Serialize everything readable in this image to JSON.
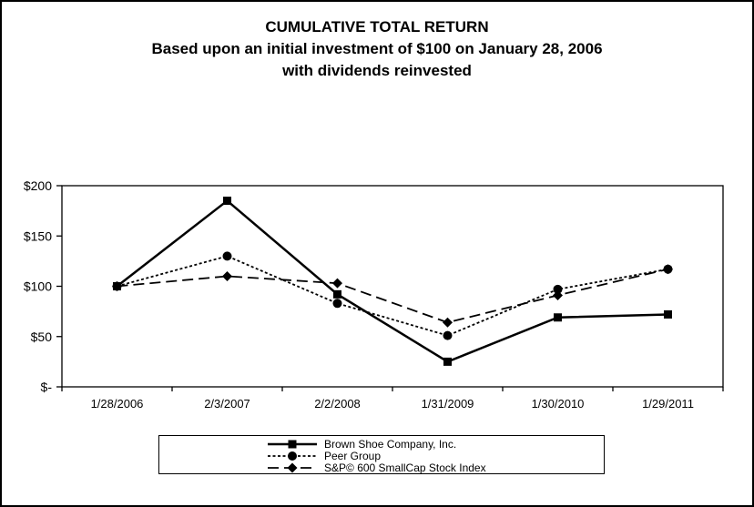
{
  "title": {
    "line1": "CUMULATIVE TOTAL RETURN",
    "line2": "Based upon an initial investment of $100 on January 28, 2006",
    "line3": "with dividends reinvested"
  },
  "chart_data": {
    "type": "line",
    "categories": [
      "1/28/2006",
      "2/3/2007",
      "2/2/2008",
      "1/31/2009",
      "1/30/2010",
      "1/29/2011"
    ],
    "series": [
      {
        "name": "Brown Shoe Company, Inc.",
        "values": [
          100,
          185,
          92,
          25,
          69,
          72
        ],
        "marker": "square",
        "dash": "solid"
      },
      {
        "name": "Peer Group",
        "values": [
          100,
          130,
          83,
          51,
          97,
          117
        ],
        "marker": "circle",
        "dash": "dotted"
      },
      {
        "name": "S&P© 600 SmallCap Stock Index",
        "values": [
          100,
          110,
          103,
          64,
          91,
          117
        ],
        "marker": "diamond",
        "dash": "longdash"
      }
    ],
    "yticks": [
      {
        "value": 0,
        "label": "$-"
      },
      {
        "value": 50,
        "label": "$50"
      },
      {
        "value": 100,
        "label": "$100"
      },
      {
        "value": 150,
        "label": "$150"
      },
      {
        "value": 200,
        "label": "$200"
      }
    ],
    "ylim": [
      0,
      200
    ],
    "grid": false,
    "legend_position": "bottom",
    "line_color": "#000000",
    "background_color": "#ffffff"
  }
}
